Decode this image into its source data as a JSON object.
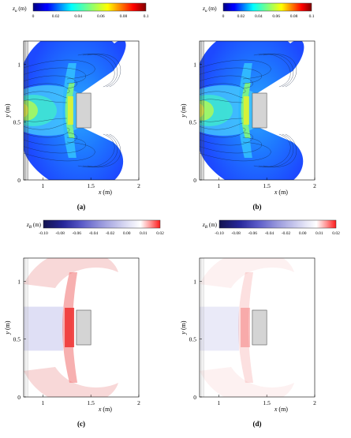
{
  "chart_data": [
    {
      "panel_label": "(a)",
      "type": "heatmap",
      "variable": "z_u",
      "colorbar_label_symbol": "z",
      "colorbar_label_sub": "u",
      "colorbar_label_unit": " (m)",
      "colormap": "jet",
      "colorbar_ticks": [
        "0",
        "0.02",
        "0.04",
        "0.06",
        "0.08",
        "0.1"
      ],
      "colorbar_range": [
        0,
        0.1
      ],
      "xlabel": "x (m)",
      "ylabel": "y (m)",
      "xlim": [
        0.8,
        2.0
      ],
      "ylim": [
        0,
        1.2
      ],
      "xticks": [
        "1",
        "1.5",
        "2"
      ],
      "yticks": [
        "0",
        "0.5",
        "1"
      ],
      "obstacle": {
        "x": [
          1.35,
          1.5
        ],
        "y": [
          0.45,
          0.75
        ]
      },
      "contour_lines": true
    },
    {
      "panel_label": "(b)",
      "type": "heatmap",
      "variable": "z_u",
      "colorbar_label_symbol": "z",
      "colorbar_label_sub": "u",
      "colorbar_label_unit": " (m)",
      "colormap": "jet",
      "colorbar_ticks": [
        "0",
        "0.02",
        "0.04",
        "0.06",
        "0.08",
        "0.1"
      ],
      "colorbar_range": [
        0,
        0.1
      ],
      "xlabel": "x (m)",
      "ylabel": "y (m)",
      "xlim": [
        0.8,
        2.0
      ],
      "ylim": [
        0,
        1.2
      ],
      "xticks": [
        "1",
        "1.5",
        "2"
      ],
      "yticks": [
        "0",
        "0.5",
        "1"
      ],
      "obstacle": {
        "x": [
          1.35,
          1.5
        ],
        "y": [
          0.45,
          0.75
        ]
      },
      "contour_lines": true
    },
    {
      "panel_label": "(c)",
      "type": "heatmap",
      "variable": "z_B",
      "colorbar_label_symbol": "z",
      "colorbar_label_sub": "B",
      "colorbar_label_unit": " (m)",
      "colormap": "diverging blue-white-red",
      "colorbar_ticks": [
        "-0.10",
        "-0.08",
        "-0.06",
        "-0.04",
        "-0.02",
        "0.00",
        "0.01",
        "0.02"
      ],
      "colorbar_range": [
        -0.1,
        0.02
      ],
      "xlabel": "x (m)",
      "ylabel": "y (m)",
      "xlim": [
        0.8,
        2.0
      ],
      "ylim": [
        0,
        1.2
      ],
      "xticks": [
        "1",
        "1.5",
        "2"
      ],
      "yticks": [
        "0",
        "0.5",
        "1"
      ],
      "obstacle": {
        "x": [
          1.35,
          1.5
        ],
        "y": [
          0.45,
          0.75
        ]
      },
      "contour_lines": false
    },
    {
      "panel_label": "(d)",
      "type": "heatmap",
      "variable": "z_B",
      "colorbar_label_symbol": "z",
      "colorbar_label_sub": "B",
      "colorbar_label_unit": " (m)",
      "colormap": "diverging blue-white-red",
      "colorbar_ticks": [
        "-0.10",
        "-0.08",
        "-0.06",
        "-0.04",
        "-0.02",
        "0.00",
        "0.01",
        "0.02"
      ],
      "colorbar_range": [
        -0.1,
        0.02
      ],
      "xlabel": "x (m)",
      "ylabel": "y (m)",
      "xlim": [
        0.8,
        2.0
      ],
      "ylim": [
        0,
        1.2
      ],
      "xticks": [
        "1",
        "1.5",
        "2"
      ],
      "yticks": [
        "0",
        "0.5",
        "1"
      ],
      "obstacle": {
        "x": [
          1.35,
          1.5
        ],
        "y": [
          0.45,
          0.75
        ]
      },
      "contour_lines": false
    }
  ],
  "colors": {
    "obstacle_fill": "#d4d4d4",
    "obstacle_stroke": "#555555",
    "jet_low": "#00007f",
    "jet_mid": "#7fff7f",
    "jet_high": "#7f0000",
    "diverging_low": "#1a1a5e",
    "diverging_zero": "#ffffff",
    "diverging_high": "#ff1a1a"
  }
}
